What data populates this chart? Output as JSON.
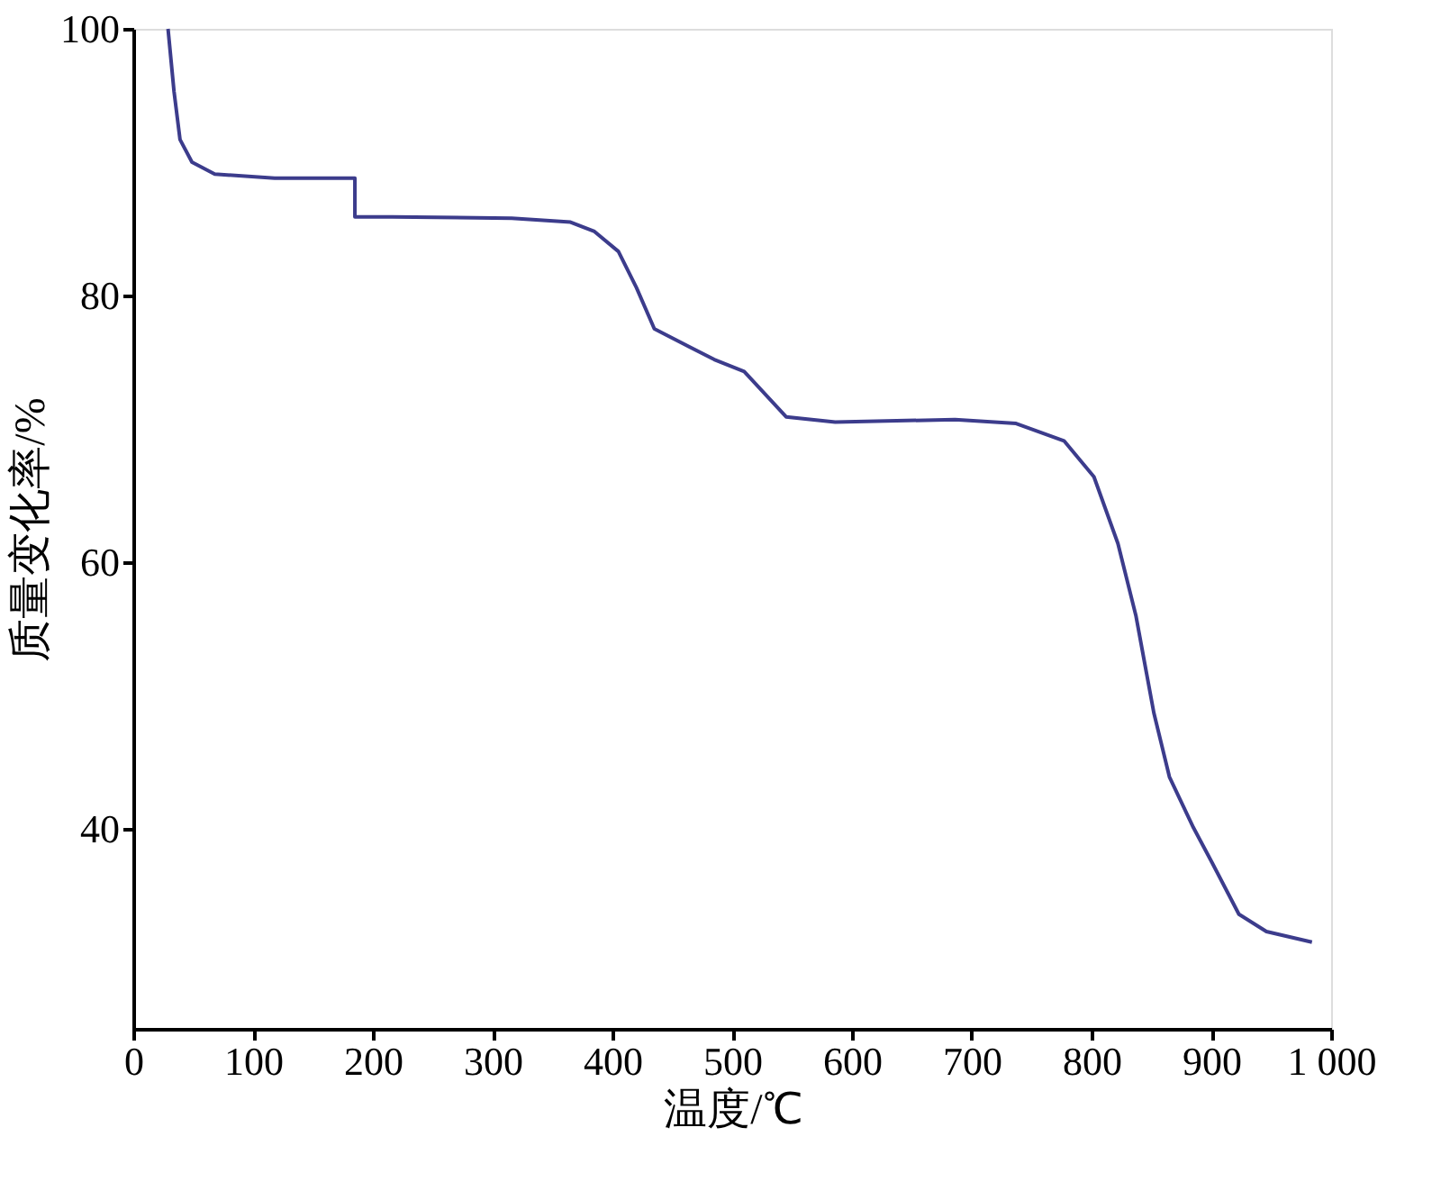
{
  "chart_data": {
    "type": "line",
    "xlabel": "温度/℃",
    "ylabel": "质量变化率/%",
    "x": [
      29,
      34,
      39,
      49,
      68,
      118,
      179,
      185,
      185,
      216,
      316,
      365,
      385,
      405,
      420,
      435,
      485,
      510,
      545,
      586,
      686,
      737,
      777,
      802,
      822,
      837,
      852,
      865,
      885,
      901,
      923,
      946,
      984
    ],
    "series": [
      {
        "color": "#3c3c8c",
        "values": [
          100,
          95.3,
          91.7,
          90.0,
          89.1,
          88.8,
          88.8,
          88.8,
          85.9,
          85.9,
          85.8,
          85.5,
          84.8,
          83.3,
          80.6,
          77.5,
          75.2,
          74.3,
          70.9,
          70.5,
          70.7,
          70.4,
          69.1,
          66.4,
          61.4,
          56.0,
          48.7,
          43.9,
          40.1,
          37.4,
          33.6,
          32.3,
          31.5
        ]
      }
    ],
    "xlim": [
      0,
      1000
    ],
    "xticks": [
      0,
      100,
      200,
      300,
      400,
      500,
      600,
      700,
      800,
      900,
      {
        "value": 1000,
        "label": "1 000"
      }
    ],
    "ylim": [
      25,
      100
    ],
    "yticks": [
      40,
      60,
      80,
      100
    ],
    "grid": false,
    "legend": false,
    "marker": "none",
    "line_style": "solid"
  }
}
